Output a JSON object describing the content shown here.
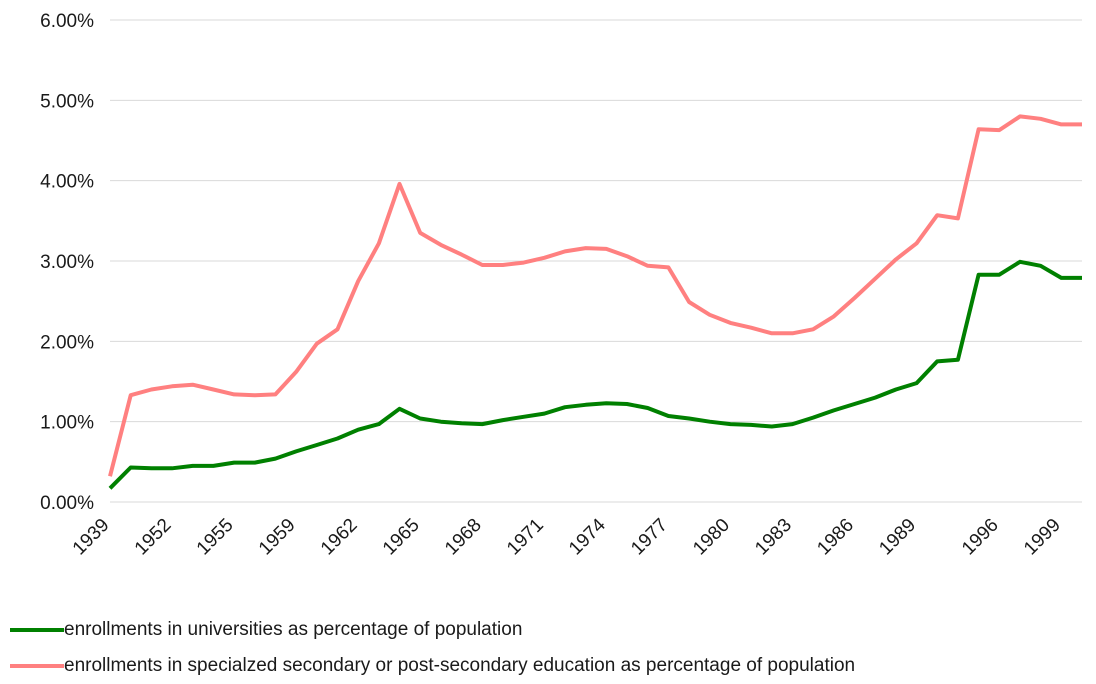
{
  "chart_data": {
    "type": "line",
    "title": "",
    "xlabel": "",
    "ylabel": "",
    "ylim": [
      0,
      0.06
    ],
    "grid": true,
    "legend_position": "bottom-left",
    "yticks": [
      "0.00%",
      "1.00%",
      "2.00%",
      "3.00%",
      "4.00%",
      "5.00%",
      "6.00%"
    ],
    "x": [
      "1939",
      "1950",
      "1951",
      "1952",
      "1953",
      "1954",
      "1955",
      "1956",
      "1957",
      "1959",
      "1960",
      "1961",
      "1962",
      "1963",
      "1964",
      "1965",
      "1966",
      "1967",
      "1968",
      "1969",
      "1970",
      "1971",
      "1972",
      "1973",
      "1974",
      "1975",
      "1976",
      "1977",
      "1978",
      "1979",
      "1980",
      "1981",
      "1982",
      "1983",
      "1984",
      "1985",
      "1986",
      "1987",
      "1988",
      "1989",
      "1990",
      "1991",
      "1995",
      "1996",
      "1997",
      "1998",
      "1999",
      "2000"
    ],
    "xtick_labels": [
      "1939",
      "1952",
      "1955",
      "1959",
      "1962",
      "1965",
      "1968",
      "1971",
      "1974",
      "1977",
      "1980",
      "1983",
      "1986",
      "1989",
      "1996",
      "1999"
    ],
    "series": [
      {
        "name": "enrollments in universities as percentage of population",
        "color": "#008000",
        "values": [
          0.0017,
          0.0043,
          0.0042,
          0.0042,
          0.0045,
          0.0045,
          0.0049,
          0.0049,
          0.0054,
          0.0063,
          0.0071,
          0.0079,
          0.009,
          0.0097,
          0.0116,
          0.0104,
          0.01,
          0.0098,
          0.0097,
          0.0102,
          0.0106,
          0.011,
          0.0118,
          0.0121,
          0.0123,
          0.0122,
          0.0117,
          0.0107,
          0.0104,
          0.01,
          0.0097,
          0.0096,
          0.0094,
          0.0097,
          0.0105,
          0.0114,
          0.0122,
          0.013,
          0.014,
          0.0148,
          0.0175,
          0.0177,
          0.0283,
          0.0283,
          0.0299,
          0.0294,
          0.0279,
          0.0279
        ]
      },
      {
        "name": "enrollments in specialzed secondary or post-secondary education as percentage of population",
        "color": "#ff8080",
        "values": [
          0.0032,
          0.0133,
          0.014,
          0.0144,
          0.0146,
          0.014,
          0.0134,
          0.0133,
          0.0134,
          0.0162,
          0.0197,
          0.0215,
          0.0275,
          0.0322,
          0.0396,
          0.0335,
          0.032,
          0.0308,
          0.0295,
          0.0295,
          0.0298,
          0.0304,
          0.0312,
          0.0316,
          0.0315,
          0.0306,
          0.0294,
          0.0292,
          0.0249,
          0.0233,
          0.0223,
          0.0217,
          0.021,
          0.021,
          0.0215,
          0.0231,
          0.0254,
          0.0278,
          0.0302,
          0.0322,
          0.0357,
          0.0353,
          0.0464,
          0.0463,
          0.048,
          0.0477,
          0.047,
          0.047
        ]
      }
    ]
  }
}
